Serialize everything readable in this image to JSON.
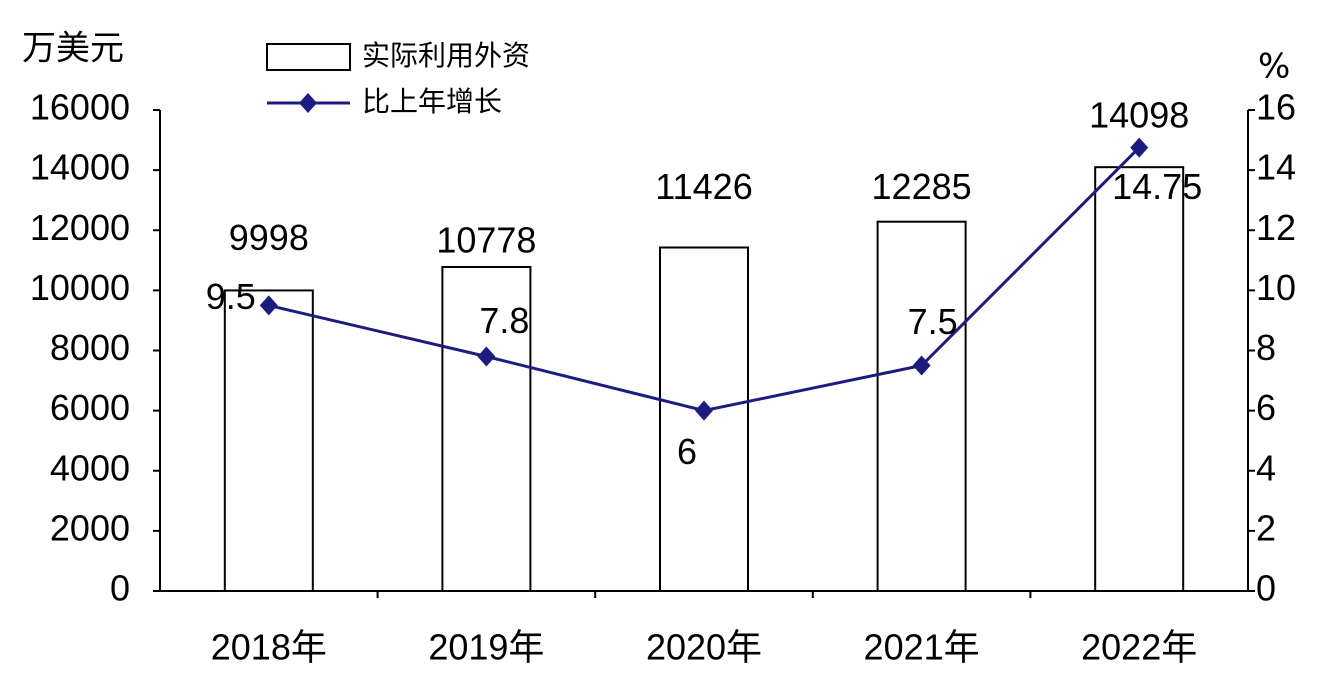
{
  "chart_data": {
    "type": "bar",
    "y_label": "万美元",
    "y2_label": "%",
    "categories": [
      "2018年",
      "2019年",
      "2020年",
      "2021年",
      "2022年"
    ],
    "series": [
      {
        "name": "实际利用外资",
        "color": "#ffffff",
        "values": [
          9998,
          10778,
          11426,
          12285,
          14098
        ]
      },
      {
        "name": "比上年增长",
        "color": "#1c1c80",
        "type": "line",
        "axis": "y2",
        "values": [
          9.5,
          7.8,
          6,
          7.5,
          14.75
        ]
      }
    ],
    "ylim": [
      0,
      16000
    ],
    "yticks": [
      0,
      2000,
      4000,
      6000,
      8000,
      10000,
      12000,
      14000,
      16000
    ],
    "y2lim": [
      0,
      16
    ],
    "y2ticks": [
      0,
      2,
      4,
      6,
      8,
      10,
      12,
      14,
      16
    ],
    "grid": false
  }
}
